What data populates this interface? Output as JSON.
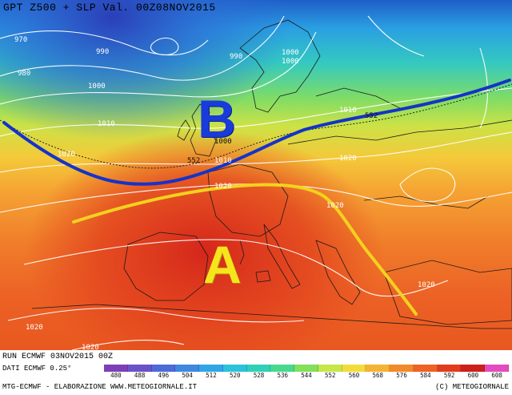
{
  "header": {
    "title": "GPT Z500 + SLP Val. 00Z08NOV2015"
  },
  "footer": {
    "run": "RUN ECMWF 03NOV2015 00Z",
    "data": "DATI ECMWF 0.25°",
    "credit": "MTG-ECMWF - ELABORAZIONE WWW.METEOGIORNALE.IT",
    "copyright": "(C) METEOGIORNALE"
  },
  "markers": {
    "low": "B",
    "high": "A"
  },
  "colors": {
    "trough_line": "#1533c8",
    "ridge_line": "#f2d21e",
    "low_marker": "#1a3bdc",
    "high_marker": "#f6e51c"
  },
  "isobars": [
    {
      "label": "970"
    },
    {
      "label": "990"
    },
    {
      "label": "990"
    },
    {
      "label": "980"
    },
    {
      "label": "1000"
    },
    {
      "label": "1000"
    },
    {
      "label": "1000"
    },
    {
      "label": "1010"
    },
    {
      "label": "1010"
    },
    {
      "label": "1010"
    },
    {
      "label": "1000"
    },
    {
      "label": "1020"
    },
    {
      "label": "1020"
    },
    {
      "label": "1020"
    },
    {
      "label": "1020"
    },
    {
      "label": "1020"
    },
    {
      "label": "1020"
    },
    {
      "label": "1020"
    },
    {
      "label": "552"
    },
    {
      "label": "552"
    }
  ],
  "legend": {
    "levels": [
      "480",
      "488",
      "496",
      "504",
      "512",
      "520",
      "528",
      "536",
      "544",
      "552",
      "560",
      "568",
      "576",
      "584",
      "592",
      "600",
      "608"
    ],
    "colors": [
      "#7d3fb8",
      "#6a52c9",
      "#4d6ad8",
      "#3f88e0",
      "#2fa6e6",
      "#2cc2dc",
      "#30d0b8",
      "#48d98e",
      "#82e05a",
      "#c7e648",
      "#f3dc3a",
      "#f6b232",
      "#f28a2a",
      "#ee6224",
      "#e23c1e",
      "#cc201c",
      "#e44bc0"
    ]
  }
}
